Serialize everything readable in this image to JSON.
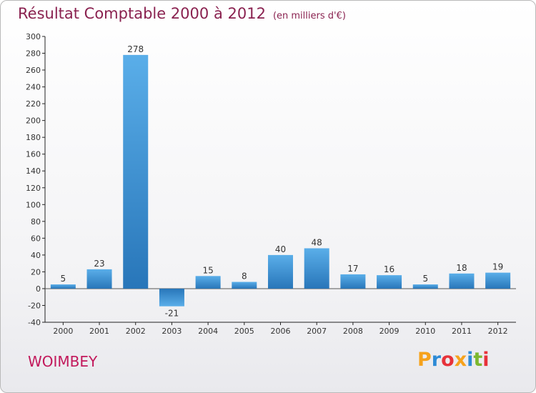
{
  "chart_data": {
    "type": "bar",
    "title": "Résultat Comptable 2000 à 2012",
    "subtitle": "(en milliers d'€)",
    "categories": [
      "2000",
      "2001",
      "2002",
      "2003",
      "2004",
      "2005",
      "2006",
      "2007",
      "2008",
      "2009",
      "2010",
      "2011",
      "2012"
    ],
    "values": [
      5,
      23,
      278,
      -21,
      15,
      8,
      40,
      48,
      17,
      16,
      5,
      18,
      19
    ],
    "data_labels": [
      "5",
      "23",
      "278",
      "-21",
      "15",
      "8",
      "40",
      "48",
      "17",
      "16",
      "5",
      "18",
      "19"
    ],
    "ylim": [
      -40,
      300
    ],
    "yticks": [
      -40,
      -20,
      0,
      20,
      40,
      60,
      80,
      100,
      120,
      140,
      160,
      180,
      200,
      220,
      240,
      260,
      280,
      300
    ],
    "ytick_labels": [
      "-40",
      "-20",
      "0",
      "20",
      "40",
      "60",
      "80",
      "100",
      "120",
      "140",
      "160",
      "180",
      "200",
      "220",
      "240",
      "260",
      "280",
      "300"
    ],
    "xlabel": "",
    "ylabel": "",
    "grid": false,
    "bar_color": "#3a8fd4"
  },
  "footer": {
    "town": "WOIMBEY"
  },
  "logo": {
    "letters": [
      "P",
      "r",
      "o",
      "x",
      "i",
      "t",
      "i"
    ],
    "colors": [
      "#f6a21c",
      "#2e8bd6",
      "#e7323a",
      "#f6a21c",
      "#2e8bd6",
      "#7cb82f",
      "#e7323a"
    ]
  }
}
